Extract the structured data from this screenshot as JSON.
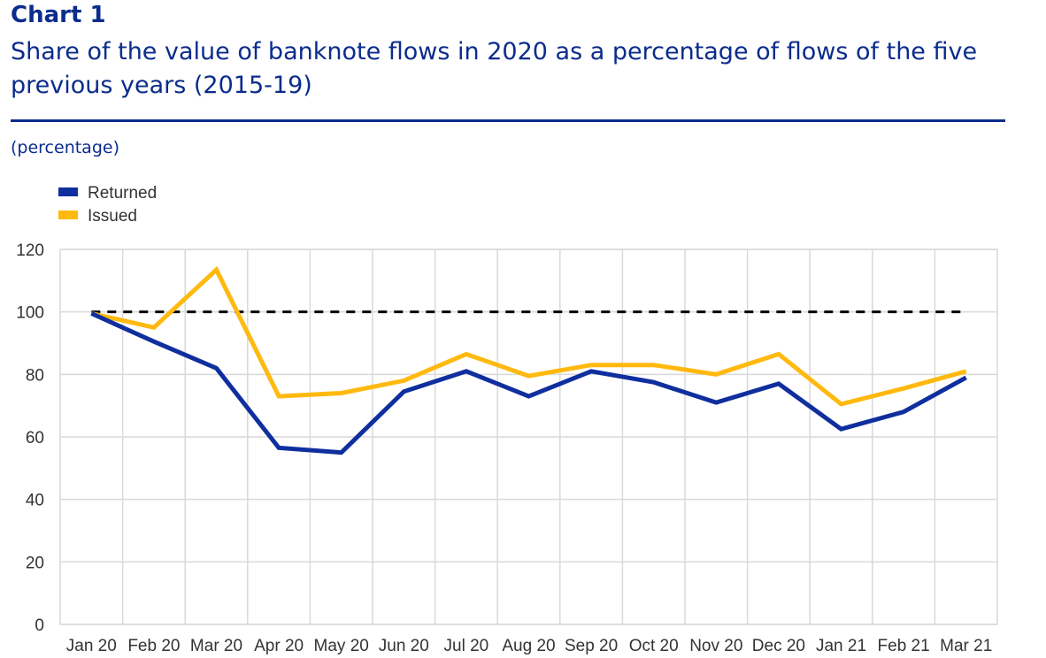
{
  "header": {
    "label": "Chart 1",
    "title": "Share of the value of banknote flows in 2020 as a percentage of flows of the five previous years (2015-19)",
    "unit": "(percentage)"
  },
  "chart_data": {
    "type": "line",
    "title": "Share of the value of banknote flows in 2020 as a percentage of flows of the five previous years (2015-19)",
    "ylabel": "(percentage)",
    "xlabel": "",
    "categories": [
      "Jan 20",
      "Feb 20",
      "Mar 20",
      "Apr 20",
      "May 20",
      "Jun 20",
      "Jul 20",
      "Aug 20",
      "Sep 20",
      "Oct 20",
      "Nov 20",
      "Dec 20",
      "Jan 21",
      "Feb 21",
      "Mar 21"
    ],
    "ylim": [
      0,
      120
    ],
    "yticks": [
      0,
      20,
      40,
      60,
      80,
      100,
      120
    ],
    "grid": true,
    "legend_position": "top-left",
    "reference_line": {
      "value": 100,
      "style": "dashed",
      "color": "#000000"
    },
    "series": [
      {
        "name": "Returned",
        "color": "#0f2f9e",
        "values": [
          99.5,
          90.5,
          82,
          56.5,
          55,
          74.5,
          81,
          73,
          81,
          77.5,
          71,
          77,
          62.5,
          68,
          79
        ]
      },
      {
        "name": "Issued",
        "color": "#ffb90f",
        "values": [
          99.5,
          95,
          113.5,
          73,
          74,
          78,
          86.5,
          79.5,
          83,
          83,
          80,
          86.5,
          70.5,
          75.5,
          81
        ]
      }
    ]
  }
}
